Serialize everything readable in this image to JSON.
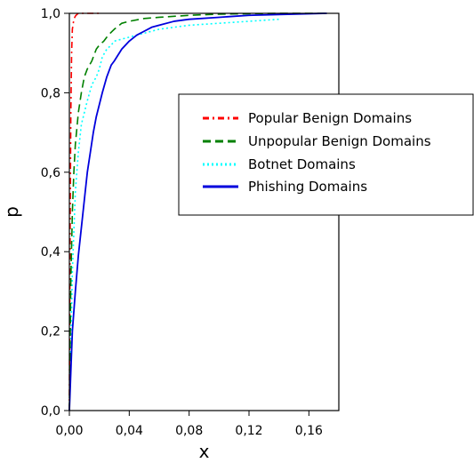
{
  "chart_data": {
    "type": "line",
    "title": "",
    "xlabel": "x",
    "ylabel": "p",
    "xlim": [
      0,
      0.18
    ],
    "ylim": [
      0,
      1
    ],
    "xticks": [
      0,
      0.04,
      0.08,
      0.12,
      0.16
    ],
    "xtick_labels": [
      "0,00",
      "0,04",
      "0,08",
      "0,12",
      "0,16"
    ],
    "yticks": [
      0,
      0.2,
      0.4,
      0.6,
      0.8,
      1.0
    ],
    "ytick_labels": [
      "0,0",
      "0,2",
      "0,4",
      "0,6",
      "0,8",
      "1,0"
    ],
    "grid": false,
    "legend_position": "center-right",
    "series": [
      {
        "name": "Popular Benign Domains",
        "color": "#ff0000",
        "style": "dashdot",
        "x": [
          0,
          0.0005,
          0.001,
          0.0015,
          0.002,
          0.003,
          0.004,
          0.005,
          0.006,
          0.008,
          0.01,
          0.015,
          0.02
        ],
        "y": [
          0,
          0.45,
          0.75,
          0.9,
          0.96,
          0.985,
          0.993,
          0.997,
          1.0,
          1.0,
          1.0,
          1.0,
          1.0
        ]
      },
      {
        "name": "Unpopular Benign Domains",
        "color": "#008000",
        "style": "dashed",
        "x": [
          0,
          0.001,
          0.002,
          0.003,
          0.004,
          0.006,
          0.008,
          0.01,
          0.012,
          0.015,
          0.018,
          0.02,
          0.023,
          0.026,
          0.03,
          0.035,
          0.04,
          0.05,
          0.06,
          0.08,
          0.1,
          0.12,
          0.14,
          0.16,
          0.172
        ],
        "y": [
          0,
          0.33,
          0.5,
          0.6,
          0.67,
          0.75,
          0.8,
          0.84,
          0.86,
          0.88,
          0.91,
          0.92,
          0.93,
          0.945,
          0.96,
          0.975,
          0.98,
          0.987,
          0.99,
          0.995,
          0.998,
          0.999,
          1.0,
          1.0,
          1.0
        ]
      },
      {
        "name": "Botnet Domains",
        "color": "#00ffff",
        "style": "dotted",
        "x": [
          0,
          0.002,
          0.004,
          0.006,
          0.008,
          0.01,
          0.012,
          0.015,
          0.018,
          0.02,
          0.022,
          0.025,
          0.028,
          0.03,
          0.035,
          0.04,
          0.05,
          0.06,
          0.08,
          0.1,
          0.12,
          0.14
        ],
        "y": [
          0,
          0.35,
          0.55,
          0.65,
          0.72,
          0.75,
          0.78,
          0.82,
          0.84,
          0.86,
          0.89,
          0.91,
          0.92,
          0.93,
          0.935,
          0.94,
          0.95,
          0.96,
          0.97,
          0.975,
          0.98,
          0.985
        ]
      },
      {
        "name": "Phishing Domains",
        "color": "#0000dd",
        "style": "solid",
        "x": [
          0,
          0.002,
          0.004,
          0.006,
          0.008,
          0.01,
          0.012,
          0.014,
          0.016,
          0.018,
          0.02,
          0.022,
          0.025,
          0.028,
          0.03,
          0.035,
          0.04,
          0.045,
          0.05,
          0.055,
          0.06,
          0.07,
          0.08,
          0.1,
          0.12,
          0.14,
          0.16,
          0.172
        ],
        "y": [
          0,
          0.2,
          0.3,
          0.39,
          0.46,
          0.53,
          0.6,
          0.65,
          0.7,
          0.74,
          0.77,
          0.8,
          0.84,
          0.87,
          0.88,
          0.91,
          0.93,
          0.945,
          0.955,
          0.965,
          0.97,
          0.98,
          0.985,
          0.99,
          0.995,
          0.997,
          0.999,
          1.0
        ]
      }
    ]
  }
}
